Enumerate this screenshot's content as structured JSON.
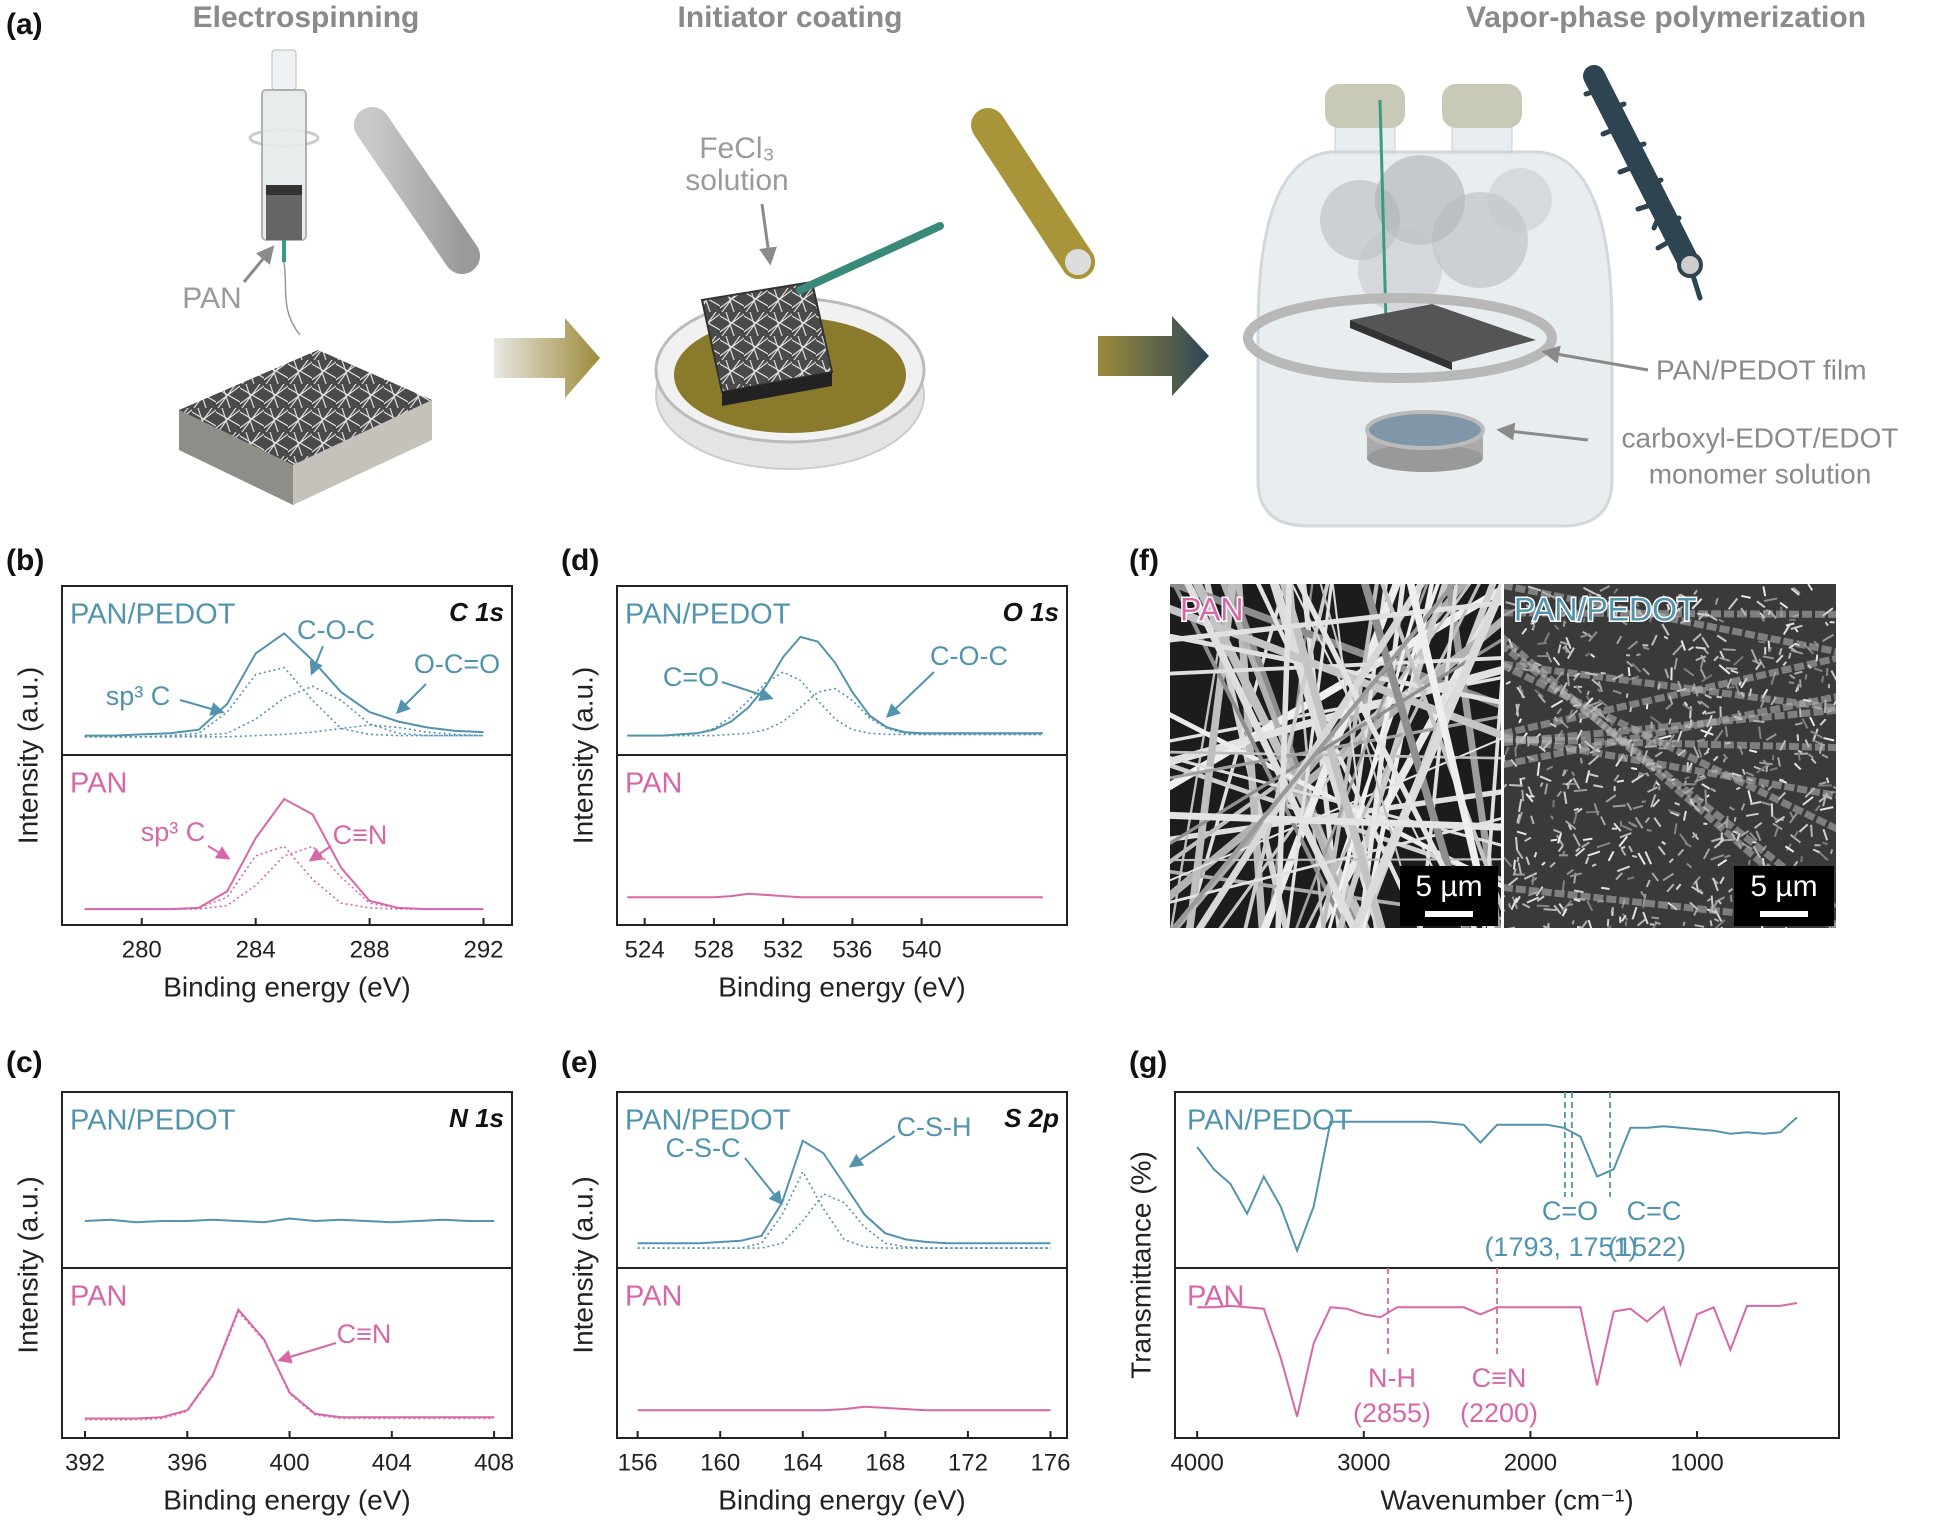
{
  "panel_a": {
    "label": "(a)",
    "steps": [
      "Electrospinning",
      "Initiator coating",
      "Vapor-phase polymerization"
    ],
    "pan": "PAN",
    "fecl3": [
      "FeCl₃",
      "solution"
    ],
    "film": "PAN/PEDOT film",
    "monomer": [
      "carboxyl-EDOT/EDOT",
      "monomer solution"
    ]
  },
  "panel_f": {
    "label": "(f)",
    "images": [
      {
        "name": "PAN",
        "scale": "5 µm"
      },
      {
        "name": "PAN/PEDOT",
        "scale": "5 µm"
      }
    ]
  },
  "chart_data": [
    {
      "type": "line",
      "panel_label": "(b)",
      "title": "C 1s",
      "xlabel": "Binding energy (eV)",
      "ylabel": "Intensity (a.u.)",
      "xlim": [
        277.2,
        293
      ],
      "xticks": [
        280,
        284,
        288,
        292
      ],
      "x": [
        278,
        279,
        280,
        281,
        282,
        283,
        284,
        285,
        286,
        287,
        288,
        289,
        290,
        291,
        292
      ],
      "subplots": [
        {
          "name": "PAN/PEDOT",
          "color": "#5293ad",
          "ylim": [
            0,
            1.2
          ],
          "annotations": [
            "sp³ C",
            "C-O-C",
            "O-C=O"
          ],
          "series": [
            {
              "values": [
                0.08,
                0.08,
                0.09,
                0.1,
                0.13,
                0.35,
                0.78,
                0.95,
                0.72,
                0.45,
                0.28,
                0.2,
                0.15,
                0.12,
                0.11
              ]
            },
            {
              "style": "dotted",
              "values": [
                0.07,
                0.07,
                0.07,
                0.08,
                0.1,
                0.28,
                0.6,
                0.66,
                0.38,
                0.14,
                0.09,
                0.08,
                0.08,
                0.08,
                0.08
              ]
            },
            {
              "style": "dotted",
              "values": [
                0.07,
                0.07,
                0.07,
                0.07,
                0.08,
                0.1,
                0.22,
                0.4,
                0.5,
                0.38,
                0.18,
                0.1,
                0.08,
                0.08,
                0.08
              ]
            },
            {
              "style": "dotted",
              "values": [
                0.07,
                0.07,
                0.07,
                0.07,
                0.07,
                0.07,
                0.08,
                0.09,
                0.11,
                0.14,
                0.17,
                0.15,
                0.11,
                0.09,
                0.08
              ]
            }
          ]
        },
        {
          "name": "PAN",
          "color": "#d667a8",
          "ylim": [
            0,
            1.2
          ],
          "annotations": [
            "sp³ C",
            "C≡N"
          ],
          "series": [
            {
              "values": [
                0.05,
                0.05,
                0.05,
                0.05,
                0.06,
                0.2,
                0.65,
                0.98,
                0.85,
                0.4,
                0.12,
                0.06,
                0.05,
                0.05,
                0.05
              ]
            },
            {
              "style": "dotted",
              "values": [
                0.05,
                0.05,
                0.05,
                0.05,
                0.06,
                0.15,
                0.5,
                0.58,
                0.3,
                0.1,
                0.06,
                0.05,
                0.05,
                0.05,
                0.05
              ]
            },
            {
              "style": "dotted",
              "values": [
                0.05,
                0.05,
                0.05,
                0.05,
                0.05,
                0.08,
                0.25,
                0.5,
                0.58,
                0.32,
                0.1,
                0.06,
                0.05,
                0.05,
                0.05
              ]
            }
          ]
        }
      ]
    },
    {
      "type": "line",
      "panel_label": "(d)",
      "title": "O 1s",
      "xlabel": "Binding energy (eV)",
      "ylabel": "Intensity (a.u.)",
      "xlim": [
        522.4,
        548.4
      ],
      "xticks": [
        524,
        528,
        532,
        536,
        540
      ],
      "x": [
        523,
        524,
        525,
        526,
        527,
        528,
        529,
        530,
        531,
        532,
        533,
        534,
        535,
        536,
        537,
        538,
        539,
        540,
        541,
        542,
        543,
        544,
        545,
        546,
        547
      ],
      "subplots": [
        {
          "name": "PAN/PEDOT",
          "color": "#5293ad",
          "ylim": [
            0,
            1.2
          ],
          "annotations": [
            "C=O",
            "C-O-C"
          ],
          "series": [
            {
              "values": [
                0.08,
                0.08,
                0.08,
                0.09,
                0.1,
                0.13,
                0.2,
                0.32,
                0.5,
                0.75,
                0.92,
                0.88,
                0.7,
                0.45,
                0.25,
                0.15,
                0.11,
                0.1,
                0.1,
                0.1,
                0.1,
                0.1,
                0.1,
                0.1,
                0.1
              ]
            },
            {
              "style": "dotted",
              "values": [
                0.08,
                0.08,
                0.08,
                0.08,
                0.1,
                0.14,
                0.24,
                0.38,
                0.53,
                0.62,
                0.55,
                0.38,
                0.22,
                0.13,
                0.1,
                0.09,
                0.09,
                0.09,
                0.09,
                0.09,
                0.09,
                0.09,
                0.09,
                0.09,
                0.09
              ]
            },
            {
              "style": "dotted",
              "values": [
                0.08,
                0.08,
                0.08,
                0.08,
                0.08,
                0.08,
                0.09,
                0.1,
                0.13,
                0.2,
                0.32,
                0.45,
                0.48,
                0.38,
                0.23,
                0.14,
                0.1,
                0.09,
                0.09,
                0.09,
                0.09,
                0.09,
                0.09,
                0.09,
                0.09
              ]
            }
          ]
        },
        {
          "name": "PAN",
          "color": "#d667a8",
          "ylim": [
            0,
            1.2
          ],
          "annotations": [],
          "series": [
            {
              "values": [
                0.15,
                0.15,
                0.15,
                0.15,
                0.15,
                0.15,
                0.16,
                0.18,
                0.17,
                0.16,
                0.15,
                0.15,
                0.15,
                0.15,
                0.15,
                0.15,
                0.15,
                0.15,
                0.15,
                0.15,
                0.15,
                0.15,
                0.15,
                0.15,
                0.15
              ]
            }
          ]
        }
      ]
    },
    {
      "type": "line",
      "panel_label": "(c)",
      "title": "N 1s",
      "xlabel": "Binding energy (eV)",
      "ylabel": "Intensity (a.u.)",
      "xlim": [
        391.1,
        408.7
      ],
      "xticks": [
        392,
        396,
        400,
        404,
        408
      ],
      "x": [
        392,
        393,
        394,
        395,
        396,
        397,
        398,
        399,
        400,
        401,
        402,
        403,
        404,
        405,
        406,
        407,
        408
      ],
      "subplots": [
        {
          "name": "PAN/PEDOT",
          "color": "#5293ad",
          "ylim": [
            0,
            1.2
          ],
          "annotations": [],
          "series": [
            {
              "values": [
                0.3,
                0.31,
                0.29,
                0.3,
                0.3,
                0.31,
                0.3,
                0.29,
                0.32,
                0.3,
                0.31,
                0.3,
                0.29,
                0.3,
                0.31,
                0.3,
                0.3
              ]
            }
          ]
        },
        {
          "name": "PAN",
          "color": "#d667a8",
          "ylim": [
            0,
            1.2
          ],
          "annotations": [
            "C≡N"
          ],
          "series": [
            {
              "values": [
                0.08,
                0.08,
                0.08,
                0.09,
                0.15,
                0.45,
                1.0,
                0.75,
                0.3,
                0.12,
                0.09,
                0.09,
                0.09,
                0.09,
                0.09,
                0.09,
                0.09
              ]
            },
            {
              "style": "dotted",
              "values": [
                0.07,
                0.07,
                0.07,
                0.08,
                0.14,
                0.44,
                0.98,
                0.74,
                0.29,
                0.11,
                0.08,
                0.08,
                0.08,
                0.08,
                0.08,
                0.08,
                0.08
              ]
            }
          ]
        }
      ]
    },
    {
      "type": "line",
      "panel_label": "(e)",
      "title": "S 2p",
      "xlabel": "Binding energy (eV)",
      "ylabel": "Intensity (a.u.)",
      "xlim": [
        155,
        176.8
      ],
      "xticks": [
        156,
        160,
        164,
        168,
        172,
        176
      ],
      "x": [
        156,
        157,
        158,
        159,
        160,
        161,
        162,
        163,
        164,
        165,
        166,
        167,
        168,
        169,
        170,
        171,
        172,
        173,
        174,
        175,
        176
      ],
      "subplots": [
        {
          "name": "PAN/PEDOT",
          "color": "#5293ad",
          "ylim": [
            0,
            1.2
          ],
          "annotations": [
            "C-S-C",
            "C-S-H"
          ],
          "series": [
            {
              "values": [
                0.12,
                0.12,
                0.12,
                0.12,
                0.13,
                0.14,
                0.18,
                0.45,
                0.95,
                0.85,
                0.6,
                0.35,
                0.2,
                0.15,
                0.13,
                0.12,
                0.12,
                0.12,
                0.12,
                0.12,
                0.12
              ]
            },
            {
              "style": "dotted",
              "values": [
                0.08,
                0.08,
                0.08,
                0.08,
                0.08,
                0.08,
                0.12,
                0.35,
                0.7,
                0.4,
                0.15,
                0.09,
                0.08,
                0.08,
                0.08,
                0.08,
                0.08,
                0.08,
                0.08,
                0.08,
                0.08
              ]
            },
            {
              "style": "dotted",
              "values": [
                0.08,
                0.08,
                0.08,
                0.08,
                0.08,
                0.08,
                0.08,
                0.12,
                0.3,
                0.52,
                0.45,
                0.25,
                0.12,
                0.09,
                0.08,
                0.08,
                0.08,
                0.08,
                0.08,
                0.08,
                0.08
              ]
            }
          ]
        },
        {
          "name": "PAN",
          "color": "#d667a8",
          "ylim": [
            0,
            1.2
          ],
          "annotations": [],
          "series": [
            {
              "values": [
                0.15,
                0.15,
                0.15,
                0.15,
                0.15,
                0.15,
                0.15,
                0.15,
                0.15,
                0.15,
                0.16,
                0.18,
                0.17,
                0.16,
                0.15,
                0.15,
                0.15,
                0.15,
                0.15,
                0.15,
                0.15
              ]
            }
          ]
        }
      ]
    },
    {
      "type": "line",
      "panel_label": "(g)",
      "xlabel": "Wavenumber (cm⁻¹)",
      "ylabel": "Transmittance (%)",
      "xlim": [
        4133,
        148
      ],
      "xticks": [
        4000,
        3000,
        2000,
        1000
      ],
      "x": [
        4000,
        3900,
        3800,
        3700,
        3600,
        3500,
        3400,
        3300,
        3200,
        3100,
        3000,
        2900,
        2800,
        2700,
        2600,
        2500,
        2400,
        2300,
        2200,
        2100,
        2000,
        1900,
        1800,
        1700,
        1600,
        1500,
        1400,
        1300,
        1200,
        1100,
        1000,
        900,
        800,
        700,
        600,
        500,
        400
      ],
      "subplots": [
        {
          "name": "PAN/PEDOT",
          "color": "#5293ad",
          "ylim": [
            0,
            1
          ],
          "markers": [
            1793,
            1751,
            1522
          ],
          "annotations": [
            "C=O",
            "(1793, 1751)",
            "C=C",
            "(1522)"
          ],
          "series": [
            {
              "values": [
                0.75,
                0.6,
                0.5,
                0.3,
                0.55,
                0.35,
                0.05,
                0.35,
                0.92,
                0.92,
                0.92,
                0.92,
                0.92,
                0.92,
                0.92,
                0.91,
                0.9,
                0.78,
                0.9,
                0.9,
                0.9,
                0.9,
                0.88,
                0.82,
                0.55,
                0.6,
                0.88,
                0.88,
                0.89,
                0.88,
                0.87,
                0.86,
                0.84,
                0.85,
                0.84,
                0.85,
                0.95
              ]
            }
          ]
        },
        {
          "name": "PAN",
          "color": "#d667a8",
          "ylim": [
            0,
            1
          ],
          "markers": [
            2855,
            2200
          ],
          "annotations": [
            "N-H",
            "(2855)",
            "C≡N",
            "(2200)"
          ],
          "series": [
            {
              "values": [
                0.85,
                0.85,
                0.86,
                0.85,
                0.84,
                0.5,
                0.08,
                0.6,
                0.85,
                0.84,
                0.8,
                0.78,
                0.85,
                0.85,
                0.85,
                0.85,
                0.85,
                0.8,
                0.85,
                0.85,
                0.85,
                0.85,
                0.85,
                0.85,
                0.3,
                0.82,
                0.84,
                0.75,
                0.85,
                0.45,
                0.8,
                0.85,
                0.55,
                0.86,
                0.86,
                0.86,
                0.88
              ]
            }
          ]
        }
      ]
    }
  ]
}
